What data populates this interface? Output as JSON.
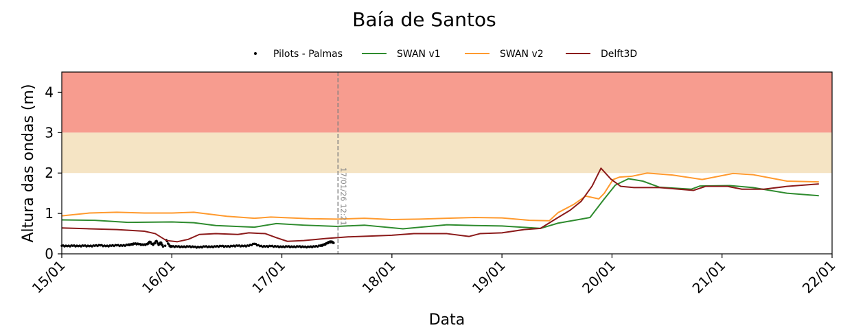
{
  "chart_data": {
    "type": "line",
    "title": "Baía de Santos",
    "xlabel": "Data",
    "ylabel": "Altura das ondas (m)",
    "xlim": [
      0,
      7
    ],
    "ylim": [
      0,
      4.5
    ],
    "x_unit": "days since 15/01",
    "xticks": [
      0,
      1,
      2,
      3,
      4,
      5,
      6,
      7
    ],
    "xtick_labels": [
      "15/01",
      "16/01",
      "17/01",
      "18/01",
      "19/01",
      "20/01",
      "21/01",
      "22/01"
    ],
    "yticks": [
      0,
      1,
      2,
      3,
      4
    ],
    "ytick_labels": [
      "0",
      "1",
      "2",
      "3",
      "4"
    ],
    "bands": [
      {
        "from": 3,
        "to": 4.5,
        "color": "#f79c8f"
      },
      {
        "from": 2,
        "to": 3,
        "color": "#f5e4c4"
      }
    ],
    "vline": {
      "x": 2.51,
      "label": "17/01/26 12:21",
      "color": "#808080"
    },
    "legend_position": "top-center",
    "series": [
      {
        "name": "Pilots - Palmas",
        "kind": "scatter",
        "color": "#000000",
        "points": [
          [
            0,
            0.2
          ],
          [
            0.05,
            0.19
          ],
          [
            0.1,
            0.2
          ],
          [
            0.15,
            0.19
          ],
          [
            0.2,
            0.2
          ],
          [
            0.25,
            0.19
          ],
          [
            0.3,
            0.2
          ],
          [
            0.35,
            0.21
          ],
          [
            0.4,
            0.19
          ],
          [
            0.45,
            0.2
          ],
          [
            0.5,
            0.21
          ],
          [
            0.55,
            0.2
          ],
          [
            0.6,
            0.22
          ],
          [
            0.63,
            0.23
          ],
          [
            0.66,
            0.25
          ],
          [
            0.7,
            0.24
          ],
          [
            0.74,
            0.22
          ],
          [
            0.78,
            0.24
          ],
          [
            0.8,
            0.3
          ],
          [
            0.83,
            0.22
          ],
          [
            0.86,
            0.32
          ],
          [
            0.88,
            0.22
          ],
          [
            0.9,
            0.28
          ],
          [
            0.92,
            0.18
          ],
          [
            0.94,
            0.2
          ],
          [
            0.95,
            0.34
          ],
          [
            0.98,
            0.19
          ],
          [
            1.0,
            0.18
          ],
          [
            1.05,
            0.18
          ],
          [
            1.1,
            0.17
          ],
          [
            1.15,
            0.18
          ],
          [
            1.2,
            0.17
          ],
          [
            1.25,
            0.16
          ],
          [
            1.3,
            0.18
          ],
          [
            1.35,
            0.17
          ],
          [
            1.4,
            0.18
          ],
          [
            1.45,
            0.19
          ],
          [
            1.5,
            0.18
          ],
          [
            1.55,
            0.19
          ],
          [
            1.6,
            0.2
          ],
          [
            1.65,
            0.19
          ],
          [
            1.7,
            0.2
          ],
          [
            1.75,
            0.25
          ],
          [
            1.8,
            0.19
          ],
          [
            1.85,
            0.18
          ],
          [
            1.9,
            0.19
          ],
          [
            1.95,
            0.18
          ],
          [
            2.0,
            0.17
          ],
          [
            2.05,
            0.18
          ],
          [
            2.1,
            0.17
          ],
          [
            2.15,
            0.18
          ],
          [
            2.2,
            0.17
          ],
          [
            2.25,
            0.17
          ],
          [
            2.3,
            0.18
          ],
          [
            2.35,
            0.2
          ],
          [
            2.38,
            0.22
          ],
          [
            2.41,
            0.26
          ],
          [
            2.43,
            0.29
          ],
          [
            2.45,
            0.3
          ],
          [
            2.47,
            0.27
          ]
        ]
      },
      {
        "name": "SWAN v1",
        "kind": "line",
        "color": "#2e8b2e",
        "points": [
          [
            0,
            0.84
          ],
          [
            0.3,
            0.83
          ],
          [
            0.6,
            0.78
          ],
          [
            1.0,
            0.79
          ],
          [
            1.2,
            0.77
          ],
          [
            1.4,
            0.7
          ],
          [
            1.75,
            0.66
          ],
          [
            1.95,
            0.75
          ],
          [
            2.2,
            0.71
          ],
          [
            2.5,
            0.68
          ],
          [
            2.75,
            0.71
          ],
          [
            3.1,
            0.62
          ],
          [
            3.5,
            0.72
          ],
          [
            3.75,
            0.7
          ],
          [
            4.0,
            0.69
          ],
          [
            4.35,
            0.63
          ],
          [
            4.51,
            0.76
          ],
          [
            4.72,
            0.86
          ],
          [
            4.8,
            0.9
          ],
          [
            4.93,
            1.36
          ],
          [
            5.03,
            1.7
          ],
          [
            5.15,
            1.86
          ],
          [
            5.28,
            1.8
          ],
          [
            5.43,
            1.65
          ],
          [
            5.72,
            1.6
          ],
          [
            5.8,
            1.68
          ],
          [
            6.07,
            1.69
          ],
          [
            6.28,
            1.64
          ],
          [
            6.59,
            1.5
          ],
          [
            6.88,
            1.44
          ]
        ]
      },
      {
        "name": "SWAN v2",
        "kind": "line",
        "color": "#ff9a2e",
        "points": [
          [
            0,
            0.94
          ],
          [
            0.25,
            1.01
          ],
          [
            0.5,
            1.03
          ],
          [
            0.75,
            1.01
          ],
          [
            1.0,
            1.01
          ],
          [
            1.2,
            1.03
          ],
          [
            1.5,
            0.93
          ],
          [
            1.75,
            0.88
          ],
          [
            1.9,
            0.91
          ],
          [
            2.25,
            0.87
          ],
          [
            2.5,
            0.86
          ],
          [
            2.75,
            0.88
          ],
          [
            3.0,
            0.85
          ],
          [
            3.25,
            0.86
          ],
          [
            3.5,
            0.88
          ],
          [
            3.75,
            0.9
          ],
          [
            4.0,
            0.89
          ],
          [
            4.25,
            0.83
          ],
          [
            4.43,
            0.82
          ],
          [
            4.51,
            1.02
          ],
          [
            4.65,
            1.22
          ],
          [
            4.76,
            1.43
          ],
          [
            4.88,
            1.36
          ],
          [
            4.93,
            1.5
          ],
          [
            5.01,
            1.84
          ],
          [
            5.07,
            1.9
          ],
          [
            5.18,
            1.92
          ],
          [
            5.32,
            2.0
          ],
          [
            5.55,
            1.95
          ],
          [
            5.82,
            1.84
          ],
          [
            6.1,
            1.99
          ],
          [
            6.28,
            1.96
          ],
          [
            6.59,
            1.8
          ],
          [
            6.88,
            1.78
          ]
        ]
      },
      {
        "name": "Delft3D",
        "kind": "line",
        "color": "#8b1a1a",
        "points": [
          [
            0,
            0.64
          ],
          [
            0.25,
            0.62
          ],
          [
            0.5,
            0.6
          ],
          [
            0.75,
            0.56
          ],
          [
            0.85,
            0.5
          ],
          [
            0.95,
            0.33
          ],
          [
            1.05,
            0.3
          ],
          [
            1.15,
            0.36
          ],
          [
            1.25,
            0.48
          ],
          [
            1.4,
            0.5
          ],
          [
            1.6,
            0.48
          ],
          [
            1.7,
            0.52
          ],
          [
            1.85,
            0.5
          ],
          [
            1.95,
            0.4
          ],
          [
            2.05,
            0.31
          ],
          [
            2.2,
            0.33
          ],
          [
            2.4,
            0.38
          ],
          [
            2.6,
            0.42
          ],
          [
            2.8,
            0.44
          ],
          [
            3.0,
            0.46
          ],
          [
            3.2,
            0.5
          ],
          [
            3.5,
            0.5
          ],
          [
            3.7,
            0.43
          ],
          [
            3.8,
            0.5
          ],
          [
            4.0,
            0.52
          ],
          [
            4.2,
            0.6
          ],
          [
            4.35,
            0.63
          ],
          [
            4.51,
            0.9
          ],
          [
            4.62,
            1.08
          ],
          [
            4.72,
            1.3
          ],
          [
            4.82,
            1.68
          ],
          [
            4.9,
            2.12
          ],
          [
            4.99,
            1.85
          ],
          [
            5.08,
            1.67
          ],
          [
            5.2,
            1.64
          ],
          [
            5.43,
            1.64
          ],
          [
            5.74,
            1.57
          ],
          [
            5.85,
            1.67
          ],
          [
            6.05,
            1.67
          ],
          [
            6.18,
            1.6
          ],
          [
            6.38,
            1.6
          ],
          [
            6.59,
            1.67
          ],
          [
            6.88,
            1.73
          ]
        ]
      }
    ]
  }
}
